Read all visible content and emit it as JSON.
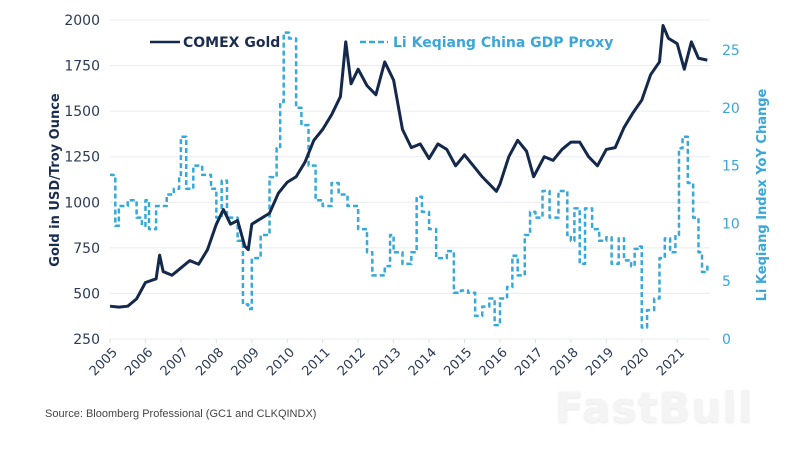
{
  "chart_data": {
    "type": "line",
    "title": "",
    "xlabel": "",
    "ylabel": "Gold in USD/Troy Ounce",
    "ylabel_right": "Li Keqiang Index YoY Change",
    "xlim": [
      2005,
      2021.9
    ],
    "ylim": [
      250,
      2000
    ],
    "ylim_right": [
      0,
      26.2
    ],
    "x_ticks": [
      "2005",
      "2006",
      "2007",
      "2008",
      "2009",
      "2010",
      "2011",
      "2012",
      "2013",
      "2014",
      "2015",
      "2016",
      "2017",
      "2018",
      "2019",
      "2020",
      "2021"
    ],
    "y_ticks": [
      "250",
      "500",
      "750",
      "1000",
      "1250",
      "1500",
      "1750",
      "2000"
    ],
    "y_ticks_right": [
      "0",
      "5",
      "10",
      "15",
      "20",
      "25"
    ],
    "grid": true,
    "legend_position": "top",
    "series": [
      {
        "name": "COMEX Gold",
        "axis": "left",
        "style": "solid",
        "color": "#13284b",
        "points": [
          [
            2005.0,
            430
          ],
          [
            2005.25,
            425
          ],
          [
            2005.5,
            430
          ],
          [
            2005.75,
            470
          ],
          [
            2006.0,
            560
          ],
          [
            2006.3,
            580
          ],
          [
            2006.4,
            710
          ],
          [
            2006.5,
            620
          ],
          [
            2006.75,
            600
          ],
          [
            2007.0,
            640
          ],
          [
            2007.25,
            680
          ],
          [
            2007.5,
            660
          ],
          [
            2007.75,
            740
          ],
          [
            2008.0,
            880
          ],
          [
            2008.2,
            960
          ],
          [
            2008.4,
            880
          ],
          [
            2008.6,
            900
          ],
          [
            2008.8,
            760
          ],
          [
            2008.9,
            740
          ],
          [
            2009.0,
            880
          ],
          [
            2009.25,
            910
          ],
          [
            2009.5,
            940
          ],
          [
            2009.75,
            1050
          ],
          [
            2010.0,
            1110
          ],
          [
            2010.25,
            1140
          ],
          [
            2010.5,
            1220
          ],
          [
            2010.75,
            1340
          ],
          [
            2011.0,
            1400
          ],
          [
            2011.25,
            1480
          ],
          [
            2011.5,
            1580
          ],
          [
            2011.65,
            1880
          ],
          [
            2011.8,
            1650
          ],
          [
            2012.0,
            1730
          ],
          [
            2012.25,
            1640
          ],
          [
            2012.5,
            1590
          ],
          [
            2012.75,
            1770
          ],
          [
            2013.0,
            1670
          ],
          [
            2013.25,
            1400
          ],
          [
            2013.5,
            1300
          ],
          [
            2013.75,
            1320
          ],
          [
            2014.0,
            1240
          ],
          [
            2014.25,
            1320
          ],
          [
            2014.5,
            1290
          ],
          [
            2014.75,
            1200
          ],
          [
            2015.0,
            1260
          ],
          [
            2015.25,
            1200
          ],
          [
            2015.5,
            1140
          ],
          [
            2015.9,
            1060
          ],
          [
            2016.0,
            1100
          ],
          [
            2016.25,
            1250
          ],
          [
            2016.5,
            1340
          ],
          [
            2016.75,
            1280
          ],
          [
            2016.95,
            1140
          ],
          [
            2017.25,
            1250
          ],
          [
            2017.5,
            1230
          ],
          [
            2017.75,
            1290
          ],
          [
            2018.0,
            1330
          ],
          [
            2018.25,
            1330
          ],
          [
            2018.5,
            1250
          ],
          [
            2018.75,
            1200
          ],
          [
            2019.0,
            1290
          ],
          [
            2019.25,
            1300
          ],
          [
            2019.5,
            1410
          ],
          [
            2019.75,
            1490
          ],
          [
            2020.0,
            1560
          ],
          [
            2020.25,
            1700
          ],
          [
            2020.5,
            1770
          ],
          [
            2020.6,
            1970
          ],
          [
            2020.75,
            1900
          ],
          [
            2021.0,
            1870
          ],
          [
            2021.2,
            1730
          ],
          [
            2021.4,
            1880
          ],
          [
            2021.6,
            1790
          ],
          [
            2021.85,
            1780
          ]
        ]
      },
      {
        "name": "Li Keqiang China GDP Proxy",
        "axis": "right",
        "style": "dashed",
        "color": "#35a8dc",
        "points": [
          [
            2005.0,
            14.2
          ],
          [
            2005.1,
            14.0
          ],
          [
            2005.15,
            9.8
          ],
          [
            2005.25,
            11.5
          ],
          [
            2005.5,
            12.0
          ],
          [
            2005.75,
            10.5
          ],
          [
            2005.9,
            9.8
          ],
          [
            2006.0,
            12.0
          ],
          [
            2006.1,
            9.5
          ],
          [
            2006.3,
            11.5
          ],
          [
            2006.6,
            12.5
          ],
          [
            2006.8,
            13.0
          ],
          [
            2006.95,
            14.0
          ],
          [
            2007.0,
            17.5
          ],
          [
            2007.15,
            13.0
          ],
          [
            2007.35,
            15.0
          ],
          [
            2007.6,
            14.2
          ],
          [
            2007.85,
            13.0
          ],
          [
            2008.0,
            10.5
          ],
          [
            2008.15,
            13.7
          ],
          [
            2008.3,
            10.5
          ],
          [
            2008.6,
            8.5
          ],
          [
            2008.75,
            3.0
          ],
          [
            2008.9,
            2.6
          ],
          [
            2009.0,
            7.0
          ],
          [
            2009.25,
            9.0
          ],
          [
            2009.5,
            14.0
          ],
          [
            2009.7,
            16.5
          ],
          [
            2009.8,
            20.5
          ],
          [
            2009.9,
            26.5
          ],
          [
            2010.05,
            26.0
          ],
          [
            2010.25,
            20.0
          ],
          [
            2010.4,
            18.5
          ],
          [
            2010.6,
            15.0
          ],
          [
            2010.8,
            12.0
          ],
          [
            2011.0,
            11.5
          ],
          [
            2011.25,
            13.5
          ],
          [
            2011.45,
            12.5
          ],
          [
            2011.7,
            11.5
          ],
          [
            2012.0,
            9.5
          ],
          [
            2012.25,
            7.5
          ],
          [
            2012.4,
            5.5
          ],
          [
            2012.75,
            6.3
          ],
          [
            2012.9,
            9.0
          ],
          [
            2013.0,
            7.5
          ],
          [
            2013.25,
            6.5
          ],
          [
            2013.5,
            7.5
          ],
          [
            2013.65,
            12.3
          ],
          [
            2013.8,
            11.0
          ],
          [
            2014.0,
            9.5
          ],
          [
            2014.2,
            7.0
          ],
          [
            2014.5,
            7.6
          ],
          [
            2014.7,
            4.0
          ],
          [
            2014.9,
            4.2
          ],
          [
            2015.1,
            4.0
          ],
          [
            2015.3,
            2.0
          ],
          [
            2015.5,
            2.8
          ],
          [
            2015.7,
            3.5
          ],
          [
            2015.85,
            1.2
          ],
          [
            2016.0,
            3.5
          ],
          [
            2016.2,
            4.5
          ],
          [
            2016.35,
            7.2
          ],
          [
            2016.5,
            5.5
          ],
          [
            2016.7,
            9.0
          ],
          [
            2016.85,
            11.0
          ],
          [
            2017.0,
            10.5
          ],
          [
            2017.2,
            12.8
          ],
          [
            2017.4,
            10.5
          ],
          [
            2017.65,
            12.8
          ],
          [
            2017.9,
            9.0
          ],
          [
            2018.0,
            8.5
          ],
          [
            2018.1,
            11.3
          ],
          [
            2018.25,
            6.5
          ],
          [
            2018.4,
            11.3
          ],
          [
            2018.6,
            9.5
          ],
          [
            2018.8,
            8.5
          ],
          [
            2019.0,
            8.8
          ],
          [
            2019.15,
            6.5
          ],
          [
            2019.35,
            8.7
          ],
          [
            2019.5,
            6.8
          ],
          [
            2019.7,
            6.3
          ],
          [
            2019.8,
            7.8
          ],
          [
            2019.95,
            8.0
          ],
          [
            2020.0,
            1.0
          ],
          [
            2020.15,
            2.5
          ],
          [
            2020.35,
            3.5
          ],
          [
            2020.5,
            7.0
          ],
          [
            2020.65,
            8.7
          ],
          [
            2020.8,
            7.5
          ],
          [
            2020.95,
            9.0
          ],
          [
            2021.05,
            16.5
          ],
          [
            2021.15,
            17.5
          ],
          [
            2021.3,
            13.5
          ],
          [
            2021.45,
            10.5
          ],
          [
            2021.6,
            7.5
          ],
          [
            2021.7,
            5.8
          ],
          [
            2021.85,
            6.5
          ]
        ]
      }
    ]
  },
  "source_note": "Source: Bloomberg Professional (GC1 and CLKQINDX)",
  "watermark": "FastBull"
}
